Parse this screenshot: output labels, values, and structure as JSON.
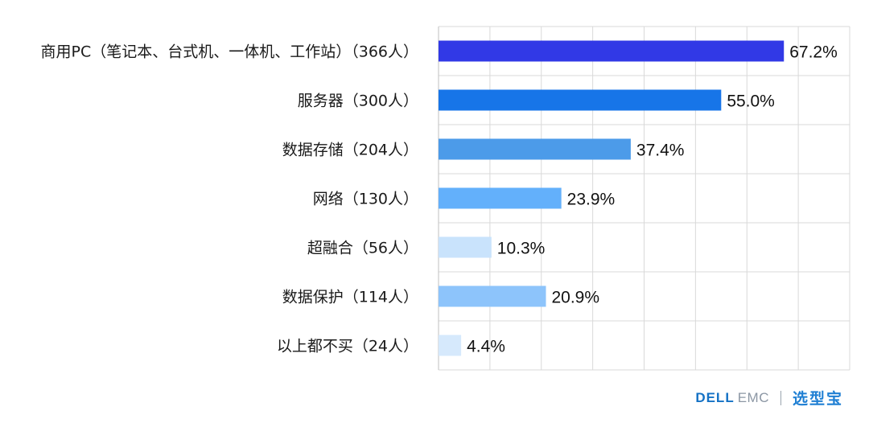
{
  "chart_data": {
    "type": "bar",
    "orientation": "horizontal",
    "categories": [
      "商用PC（笔记本、台式机、一体机、工作站）（366人）",
      "服务器（300人）",
      "数据存储（204人）",
      "网络（130人）",
      "超融合（56人）",
      "数据保护（114人）",
      "以上都不买（24人）"
    ],
    "values": [
      67.2,
      55.0,
      37.4,
      23.9,
      10.3,
      20.9,
      4.4
    ],
    "value_labels": [
      "67.2%",
      "55.0%",
      "37.4%",
      "23.9%",
      "10.3%",
      "20.9%",
      "4.4%"
    ],
    "bar_colors": [
      "#3139e6",
      "#1775e8",
      "#4c9be9",
      "#63b0fb",
      "#c9e3fc",
      "#8dc4fb",
      "#d6e9fc"
    ],
    "xlim": [
      0,
      80
    ],
    "grid": true,
    "legend": "none"
  },
  "footer": {
    "brand_dell": "DELL",
    "brand_emc": "EMC",
    "brand_xuanxingbao": "选型宝"
  }
}
